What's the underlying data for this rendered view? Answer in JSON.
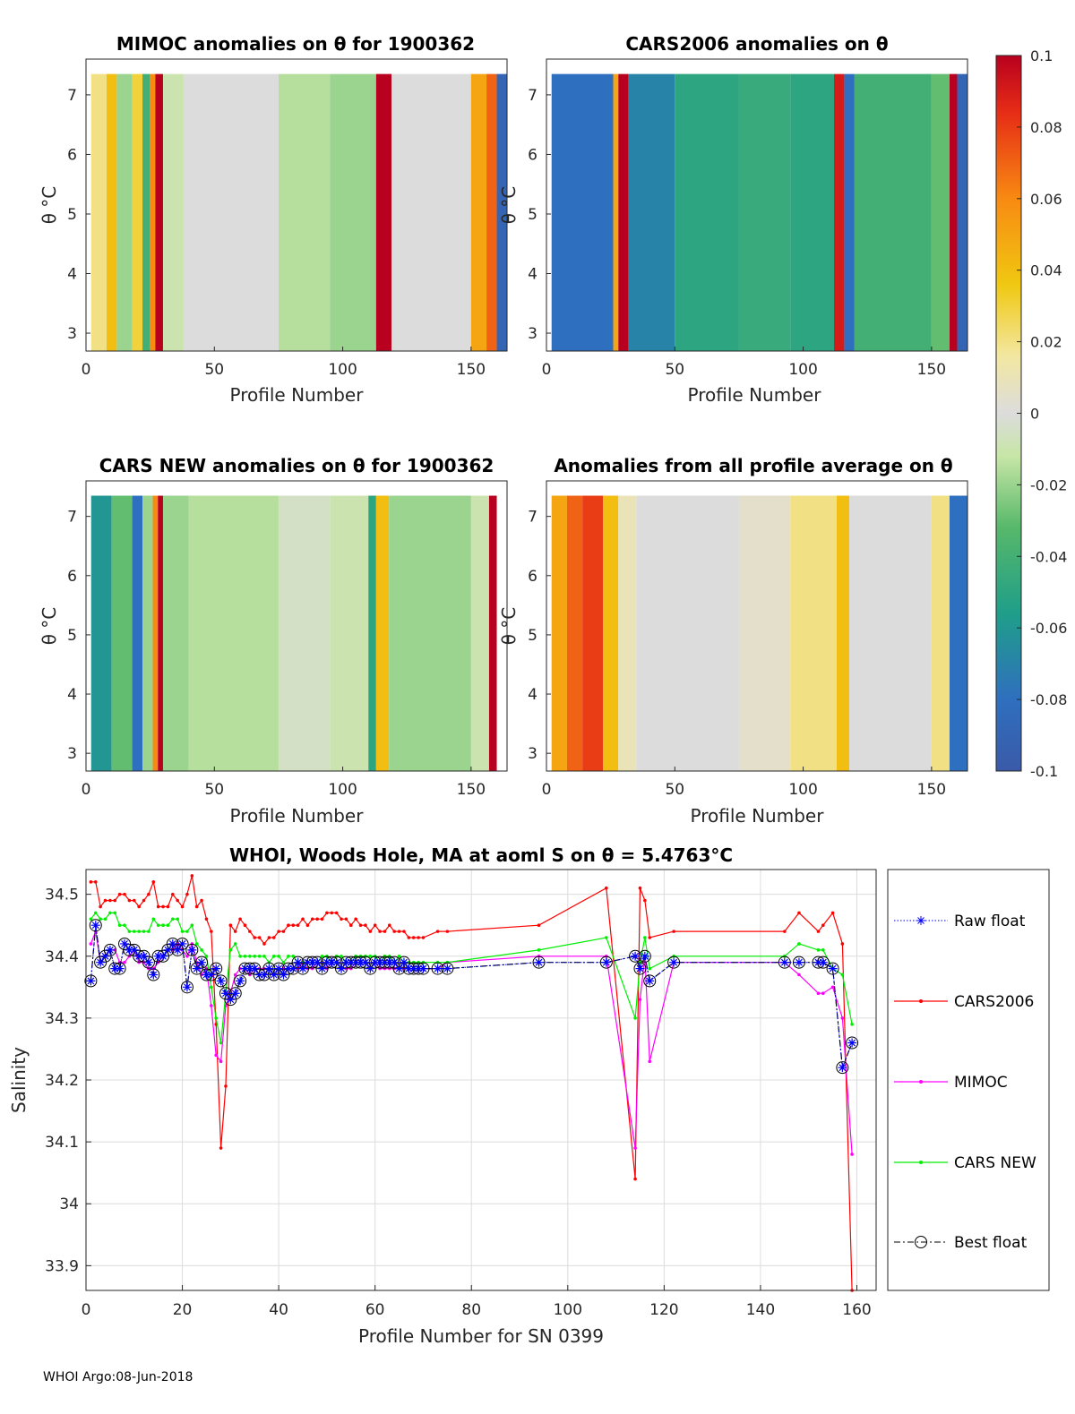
{
  "footer": "WHOI Argo:08-Jun-2018",
  "colors": {
    "cars2006": "#ff0000",
    "mimoc": "#ff00ff",
    "cars_new": "#00ee00",
    "raw_float": "#0000ff",
    "best_float": "#000000",
    "grid": "#dcdcdc"
  },
  "colorbar": {
    "ticks": [
      "0.1",
      "0.08",
      "0.06",
      "0.04",
      "0.02",
      "0",
      "-0.02",
      "-0.04",
      "-0.06",
      "-0.08",
      "-0.1"
    ],
    "range": [
      -0.1,
      0.1
    ]
  },
  "chart_data": [
    {
      "type": "heatmap",
      "id": "mimoc",
      "title": "MIMOC anomalies on θ  for 1900362",
      "xlabel": "Profile Number",
      "ylabel": "θ °C",
      "xticks": [
        "0",
        "50",
        "100",
        "150"
      ],
      "yticks": [
        "7",
        "6",
        "5",
        "4",
        "3"
      ],
      "xlim": [
        0,
        164
      ],
      "ylim": [
        2.7,
        7.6
      ],
      "bands": [
        {
          "x0": 2,
          "x1": 8,
          "v": 0.02
        },
        {
          "x0": 8,
          "x1": 12,
          "v": 0.04
        },
        {
          "x0": 12,
          "x1": 18,
          "v": -0.02
        },
        {
          "x0": 18,
          "x1": 22,
          "v": 0.03
        },
        {
          "x0": 22,
          "x1": 25,
          "v": -0.04
        },
        {
          "x0": 25,
          "x1": 27,
          "v": 0.06
        },
        {
          "x0": 27,
          "x1": 30,
          "v": 0.1
        },
        {
          "x0": 30,
          "x1": 38,
          "v": -0.01
        },
        {
          "x0": 38,
          "x1": 75,
          "v": 0.0
        },
        {
          "x0": 75,
          "x1": 95,
          "v": -0.015
        },
        {
          "x0": 95,
          "x1": 113,
          "v": -0.02
        },
        {
          "x0": 113,
          "x1": 119,
          "v": 0.1
        },
        {
          "x0": 119,
          "x1": 150,
          "v": 0.0
        },
        {
          "x0": 150,
          "x1": 156,
          "v": 0.05
        },
        {
          "x0": 156,
          "x1": 160,
          "v": 0.07
        },
        {
          "x0": 160,
          "x1": 164,
          "v": -0.09
        }
      ]
    },
    {
      "type": "heatmap",
      "id": "cars2006",
      "title": "CARS2006 anomalies on θ",
      "xlabel": "Profile Number",
      "ylabel": "θ °C",
      "xticks": [
        "0",
        "50",
        "100",
        "150"
      ],
      "yticks": [
        "7",
        "6",
        "5",
        "4",
        "3"
      ],
      "xlim": [
        0,
        164
      ],
      "ylim": [
        2.7,
        7.6
      ],
      "bands": [
        {
          "x0": 2,
          "x1": 26,
          "v": -0.08
        },
        {
          "x0": 26,
          "x1": 28,
          "v": 0.05
        },
        {
          "x0": 28,
          "x1": 32,
          "v": 0.1
        },
        {
          "x0": 32,
          "x1": 50,
          "v": -0.07
        },
        {
          "x0": 50,
          "x1": 75,
          "v": -0.05
        },
        {
          "x0": 75,
          "x1": 95,
          "v": -0.045
        },
        {
          "x0": 95,
          "x1": 112,
          "v": -0.05
        },
        {
          "x0": 112,
          "x1": 116,
          "v": 0.09
        },
        {
          "x0": 116,
          "x1": 120,
          "v": -0.08
        },
        {
          "x0": 120,
          "x1": 150,
          "v": -0.04
        },
        {
          "x0": 150,
          "x1": 157,
          "v": -0.03
        },
        {
          "x0": 157,
          "x1": 160,
          "v": 0.1
        },
        {
          "x0": 160,
          "x1": 164,
          "v": -0.09
        }
      ]
    },
    {
      "type": "heatmap",
      "id": "cars_new",
      "title": "CARS NEW anomalies on θ for 1900362",
      "xlabel": "Profile Number",
      "ylabel": "θ °C",
      "xticks": [
        "0",
        "50",
        "100",
        "150"
      ],
      "yticks": [
        "7",
        "6",
        "5",
        "4",
        "3"
      ],
      "xlim": [
        0,
        164
      ],
      "ylim": [
        2.7,
        7.6
      ],
      "bands": [
        {
          "x0": 2,
          "x1": 10,
          "v": -0.06
        },
        {
          "x0": 10,
          "x1": 18,
          "v": -0.03
        },
        {
          "x0": 18,
          "x1": 22,
          "v": -0.08
        },
        {
          "x0": 22,
          "x1": 26,
          "v": -0.02
        },
        {
          "x0": 26,
          "x1": 28,
          "v": 0.06
        },
        {
          "x0": 28,
          "x1": 30,
          "v": 0.1
        },
        {
          "x0": 30,
          "x1": 40,
          "v": -0.02
        },
        {
          "x0": 40,
          "x1": 75,
          "v": -0.015
        },
        {
          "x0": 75,
          "x1": 95,
          "v": -0.005
        },
        {
          "x0": 95,
          "x1": 110,
          "v": -0.01
        },
        {
          "x0": 110,
          "x1": 113,
          "v": -0.05
        },
        {
          "x0": 113,
          "x1": 118,
          "v": 0.04
        },
        {
          "x0": 118,
          "x1": 150,
          "v": -0.02
        },
        {
          "x0": 150,
          "x1": 157,
          "v": -0.01
        },
        {
          "x0": 157,
          "x1": 160,
          "v": 0.1
        }
      ]
    },
    {
      "type": "heatmap",
      "id": "profile_avg",
      "title": "Anomalies from all profile average on θ",
      "xlabel": "Profile Number",
      "ylabel": "θ °C",
      "xticks": [
        "0",
        "50",
        "100",
        "150"
      ],
      "yticks": [
        "7",
        "6",
        "5",
        "4",
        "3"
      ],
      "xlim": [
        0,
        164
      ],
      "ylim": [
        2.7,
        7.6
      ],
      "bands": [
        {
          "x0": 2,
          "x1": 8,
          "v": 0.05
        },
        {
          "x0": 8,
          "x1": 14,
          "v": 0.07
        },
        {
          "x0": 14,
          "x1": 22,
          "v": 0.08
        },
        {
          "x0": 22,
          "x1": 28,
          "v": 0.04
        },
        {
          "x0": 28,
          "x1": 35,
          "v": 0.01
        },
        {
          "x0": 35,
          "x1": 75,
          "v": 0.0
        },
        {
          "x0": 75,
          "x1": 95,
          "v": 0.005
        },
        {
          "x0": 95,
          "x1": 113,
          "v": 0.02
        },
        {
          "x0": 113,
          "x1": 118,
          "v": 0.04
        },
        {
          "x0": 118,
          "x1": 150,
          "v": 0.0
        },
        {
          "x0": 150,
          "x1": 157,
          "v": 0.02
        },
        {
          "x0": 157,
          "x1": 164,
          "v": -0.08
        }
      ]
    },
    {
      "type": "line",
      "id": "salinity",
      "title": "WHOI, Woods Hole, MA at aoml S on θ = 5.4763°C",
      "xlabel": "Profile Number for SN 0399",
      "ylabel": "Salinity",
      "xticks": [
        "0",
        "20",
        "40",
        "60",
        "80",
        "100",
        "120",
        "140",
        "160"
      ],
      "yticks": [
        "34.5",
        "34.4",
        "34.3",
        "34.2",
        "34.1",
        "34",
        "33.9"
      ],
      "xlim": [
        0,
        164
      ],
      "ylim": [
        33.86,
        34.54
      ],
      "grid": true,
      "legend": [
        "Raw float",
        "CARS2006",
        "MIMOC",
        "CARS NEW",
        "Best float"
      ],
      "x": [
        1,
        2,
        3,
        4,
        5,
        6,
        7,
        8,
        9,
        10,
        11,
        12,
        13,
        14,
        15,
        16,
        17,
        18,
        19,
        20,
        21,
        22,
        23,
        24,
        25,
        26,
        27,
        28,
        29,
        30,
        31,
        32,
        33,
        34,
        35,
        36,
        37,
        38,
        39,
        40,
        41,
        42,
        43,
        44,
        45,
        46,
        47,
        48,
        49,
        50,
        51,
        52,
        53,
        54,
        55,
        56,
        57,
        58,
        59,
        60,
        61,
        62,
        63,
        64,
        65,
        66,
        67,
        68,
        69,
        70,
        73,
        75,
        94,
        108,
        114,
        115,
        116,
        117,
        122,
        145,
        148,
        152,
        153,
        155,
        157,
        159
      ],
      "series": [
        {
          "name": "CARS2006",
          "values": [
            34.52,
            34.52,
            34.48,
            34.49,
            34.49,
            34.49,
            34.5,
            34.5,
            34.49,
            34.49,
            34.48,
            34.49,
            34.5,
            34.52,
            34.48,
            34.48,
            34.48,
            34.5,
            34.49,
            34.48,
            34.5,
            34.53,
            34.48,
            34.49,
            34.46,
            34.44,
            34.29,
            34.09,
            34.19,
            34.45,
            34.44,
            34.46,
            34.45,
            34.44,
            34.43,
            34.43,
            34.42,
            34.43,
            34.43,
            34.44,
            34.44,
            34.45,
            34.45,
            34.45,
            34.46,
            34.45,
            34.46,
            34.46,
            34.46,
            34.47,
            34.47,
            34.47,
            34.46,
            34.46,
            34.45,
            34.46,
            34.45,
            34.45,
            34.44,
            34.45,
            34.44,
            34.44,
            34.45,
            34.44,
            34.44,
            34.44,
            34.43,
            34.43,
            34.43,
            34.43,
            34.44,
            34.44,
            34.45,
            34.51,
            34.04,
            34.51,
            34.49,
            34.43,
            34.44,
            34.44,
            34.47,
            34.44,
            34.45,
            34.47,
            34.42,
            33.86
          ]
        },
        {
          "name": "MIMOC",
          "values": [
            34.42,
            34.44,
            34.39,
            34.4,
            34.41,
            34.41,
            34.39,
            34.39,
            34.4,
            34.41,
            34.39,
            34.39,
            34.38,
            34.38,
            34.39,
            34.4,
            34.41,
            34.41,
            34.42,
            34.41,
            34.4,
            34.42,
            34.39,
            34.37,
            34.38,
            34.32,
            34.24,
            34.23,
            34.32,
            34.34,
            34.37,
            34.38,
            34.38,
            34.37,
            34.38,
            34.38,
            34.38,
            34.38,
            34.37,
            34.38,
            34.38,
            34.38,
            34.38,
            34.38,
            34.39,
            34.38,
            34.38,
            34.39,
            34.39,
            34.38,
            34.39,
            34.39,
            34.38,
            34.38,
            34.38,
            34.39,
            34.39,
            34.39,
            34.38,
            34.39,
            34.38,
            34.38,
            34.38,
            34.38,
            34.38,
            34.38,
            34.38,
            34.38,
            34.38,
            34.38,
            34.38,
            34.39,
            34.4,
            34.4,
            34.09,
            34.33,
            34.4,
            34.23,
            34.39,
            34.39,
            34.37,
            34.34,
            34.34,
            34.35,
            34.3,
            34.08
          ]
        },
        {
          "name": "CARS NEW",
          "values": [
            34.46,
            34.47,
            34.46,
            34.46,
            34.47,
            34.47,
            34.45,
            34.45,
            34.44,
            34.44,
            34.44,
            34.44,
            34.44,
            34.46,
            34.45,
            34.45,
            34.45,
            34.46,
            34.46,
            34.44,
            34.44,
            34.45,
            34.42,
            34.41,
            34.4,
            34.35,
            34.3,
            34.26,
            34.34,
            34.41,
            34.42,
            34.4,
            34.4,
            34.4,
            34.4,
            34.4,
            34.4,
            34.39,
            34.4,
            34.4,
            34.39,
            34.4,
            34.4,
            34.39,
            34.39,
            34.39,
            34.39,
            34.39,
            34.4,
            34.4,
            34.39,
            34.4,
            34.4,
            34.39,
            34.39,
            34.4,
            34.4,
            34.4,
            34.4,
            34.4,
            34.39,
            34.4,
            34.4,
            34.39,
            34.4,
            34.39,
            34.39,
            34.39,
            34.39,
            34.39,
            34.39,
            34.39,
            34.41,
            34.43,
            34.3,
            34.39,
            34.43,
            34.38,
            34.4,
            34.4,
            34.42,
            34.41,
            34.41,
            34.38,
            34.37,
            34.29
          ]
        },
        {
          "name": "Raw float",
          "values": [
            34.36,
            34.45,
            34.39,
            34.4,
            34.41,
            34.38,
            34.38,
            34.42,
            34.41,
            34.41,
            34.4,
            34.4,
            34.39,
            34.37,
            34.4,
            34.4,
            34.41,
            34.42,
            34.41,
            34.42,
            34.35,
            34.41,
            34.38,
            34.39,
            34.37,
            34.37,
            34.38,
            34.36,
            34.34,
            34.33,
            34.34,
            34.36,
            34.38,
            34.38,
            34.38,
            34.37,
            34.37,
            34.38,
            34.37,
            34.38,
            34.37,
            34.38,
            34.38,
            34.39,
            34.38,
            34.39,
            34.39,
            34.39,
            34.38,
            34.39,
            34.39,
            34.39,
            34.38,
            34.39,
            34.39,
            34.39,
            34.39,
            34.39,
            34.38,
            34.39,
            34.39,
            34.39,
            34.39,
            34.39,
            34.38,
            34.39,
            34.38,
            34.38,
            34.38,
            34.38,
            34.38,
            34.38,
            34.39,
            34.39,
            34.4,
            34.38,
            34.4,
            34.36,
            34.39,
            34.39,
            34.39,
            34.39,
            34.39,
            34.38,
            34.22,
            34.26
          ]
        },
        {
          "name": "Best float",
          "values": [
            34.36,
            34.45,
            34.39,
            34.4,
            34.41,
            34.38,
            34.38,
            34.42,
            34.41,
            34.41,
            34.4,
            34.4,
            34.39,
            34.37,
            34.4,
            34.4,
            34.41,
            34.42,
            34.41,
            34.42,
            34.35,
            34.41,
            34.38,
            34.39,
            34.37,
            34.37,
            34.38,
            34.36,
            34.34,
            34.33,
            34.34,
            34.36,
            34.38,
            34.38,
            34.38,
            34.37,
            34.37,
            34.38,
            34.37,
            34.38,
            34.37,
            34.38,
            34.38,
            34.39,
            34.38,
            34.39,
            34.39,
            34.39,
            34.38,
            34.39,
            34.39,
            34.39,
            34.38,
            34.39,
            34.39,
            34.39,
            34.39,
            34.39,
            34.38,
            34.39,
            34.39,
            34.39,
            34.39,
            34.39,
            34.38,
            34.39,
            34.38,
            34.38,
            34.38,
            34.38,
            34.38,
            34.38,
            34.39,
            34.39,
            34.4,
            34.38,
            34.4,
            34.36,
            34.39,
            34.39,
            34.39,
            34.39,
            34.39,
            34.38,
            34.22,
            34.26
          ]
        }
      ]
    }
  ]
}
